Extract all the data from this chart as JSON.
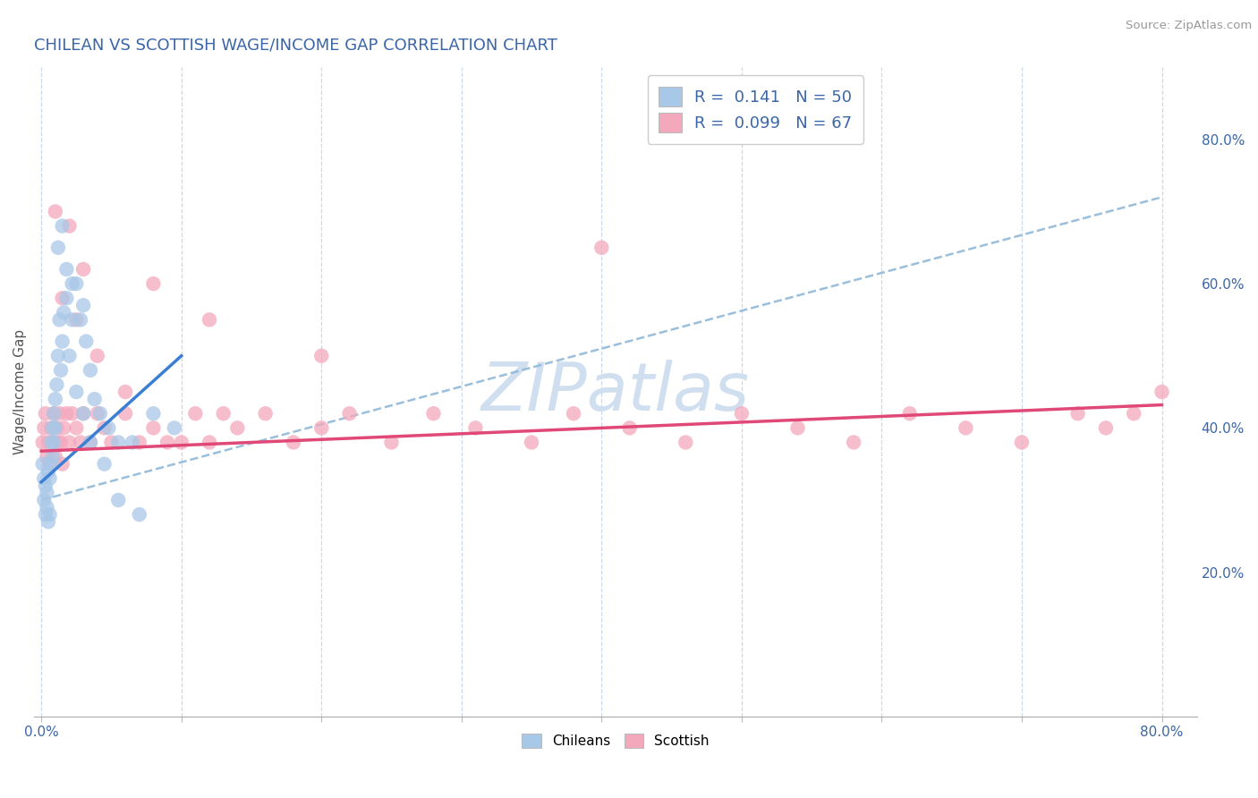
{
  "title": "CHILEAN VS SCOTTISH WAGE/INCOME GAP CORRELATION CHART",
  "source": "Source: ZipAtlas.com",
  "ylabel": "Wage/Income Gap",
  "r_chilean": 0.141,
  "n_chilean": 50,
  "r_scottish": 0.099,
  "n_scottish": 67,
  "chilean_color": "#a8c8e8",
  "scottish_color": "#f4a8bc",
  "trend_chilean_color": "#3a7fd4",
  "trend_scottish_color": "#e04878",
  "dash_line_color": "#90b8d8",
  "grid_color": "#c8d8ea",
  "watermark_color": "#d0dff0",
  "title_color": "#3a66a8",
  "axis_label_color": "#3a66a8",
  "ylabel_color": "#555555",
  "source_color": "#999999",
  "background_color": "#ffffff",
  "xmin": 0.0,
  "xmax": 0.8,
  "ymin": 0.0,
  "ymax": 0.9,
  "right_yticks": [
    0.2,
    0.4,
    0.6,
    0.8
  ],
  "right_yticklabels": [
    "20.0%",
    "40.0%",
    "60.0%",
    "80.0%"
  ],
  "xtick_vals": [
    0.0,
    0.1,
    0.2,
    0.3,
    0.4,
    0.5,
    0.6,
    0.7,
    0.8
  ],
  "xtick_labels": [
    "0.0%",
    "",
    "",
    "",
    "",
    "",
    "",
    "",
    "80.0%"
  ],
  "bottom_legend_labels": [
    "Chileans",
    "Scottish"
  ],
  "top_legend_lines": [
    "R =  0.141   N = 50",
    "R =  0.099   N = 67"
  ],
  "chilean_x": [
    0.001,
    0.002,
    0.002,
    0.003,
    0.003,
    0.004,
    0.004,
    0.005,
    0.005,
    0.006,
    0.006,
    0.007,
    0.007,
    0.008,
    0.008,
    0.009,
    0.009,
    0.01,
    0.01,
    0.011,
    0.012,
    0.013,
    0.014,
    0.015,
    0.016,
    0.018,
    0.02,
    0.022,
    0.025,
    0.028,
    0.03,
    0.032,
    0.035,
    0.038,
    0.042,
    0.048,
    0.055,
    0.065,
    0.08,
    0.095,
    0.012,
    0.015,
    0.018,
    0.022,
    0.025,
    0.03,
    0.035,
    0.045,
    0.055,
    0.07
  ],
  "chilean_y": [
    0.35,
    0.33,
    0.3,
    0.32,
    0.28,
    0.31,
    0.29,
    0.34,
    0.27,
    0.33,
    0.28,
    0.38,
    0.35,
    0.4,
    0.36,
    0.42,
    0.38,
    0.44,
    0.4,
    0.46,
    0.5,
    0.55,
    0.48,
    0.52,
    0.56,
    0.58,
    0.5,
    0.55,
    0.6,
    0.55,
    0.57,
    0.52,
    0.48,
    0.44,
    0.42,
    0.4,
    0.38,
    0.38,
    0.42,
    0.4,
    0.65,
    0.68,
    0.62,
    0.6,
    0.45,
    0.42,
    0.38,
    0.35,
    0.3,
    0.28
  ],
  "scottish_x": [
    0.001,
    0.002,
    0.003,
    0.004,
    0.005,
    0.006,
    0.007,
    0.008,
    0.009,
    0.01,
    0.011,
    0.012,
    0.013,
    0.014,
    0.015,
    0.016,
    0.018,
    0.02,
    0.022,
    0.025,
    0.028,
    0.03,
    0.035,
    0.04,
    0.045,
    0.05,
    0.06,
    0.07,
    0.08,
    0.09,
    0.1,
    0.11,
    0.12,
    0.13,
    0.14,
    0.16,
    0.18,
    0.2,
    0.22,
    0.25,
    0.28,
    0.31,
    0.35,
    0.38,
    0.42,
    0.46,
    0.5,
    0.54,
    0.58,
    0.62,
    0.66,
    0.7,
    0.74,
    0.76,
    0.78,
    0.8,
    0.01,
    0.02,
    0.03,
    0.015,
    0.025,
    0.04,
    0.06,
    0.08,
    0.12,
    0.2,
    0.4
  ],
  "scottish_y": [
    0.38,
    0.4,
    0.42,
    0.36,
    0.38,
    0.35,
    0.4,
    0.38,
    0.42,
    0.36,
    0.4,
    0.38,
    0.42,
    0.38,
    0.35,
    0.4,
    0.42,
    0.38,
    0.42,
    0.4,
    0.38,
    0.42,
    0.38,
    0.42,
    0.4,
    0.38,
    0.42,
    0.38,
    0.4,
    0.38,
    0.38,
    0.42,
    0.38,
    0.42,
    0.4,
    0.42,
    0.38,
    0.4,
    0.42,
    0.38,
    0.42,
    0.4,
    0.38,
    0.42,
    0.4,
    0.38,
    0.42,
    0.4,
    0.38,
    0.42,
    0.4,
    0.38,
    0.42,
    0.4,
    0.42,
    0.45,
    0.7,
    0.68,
    0.62,
    0.58,
    0.55,
    0.5,
    0.45,
    0.6,
    0.55,
    0.5,
    0.65
  ],
  "dash_line_x": [
    0.0,
    0.8
  ],
  "dash_line_y": [
    0.3,
    0.72
  ]
}
